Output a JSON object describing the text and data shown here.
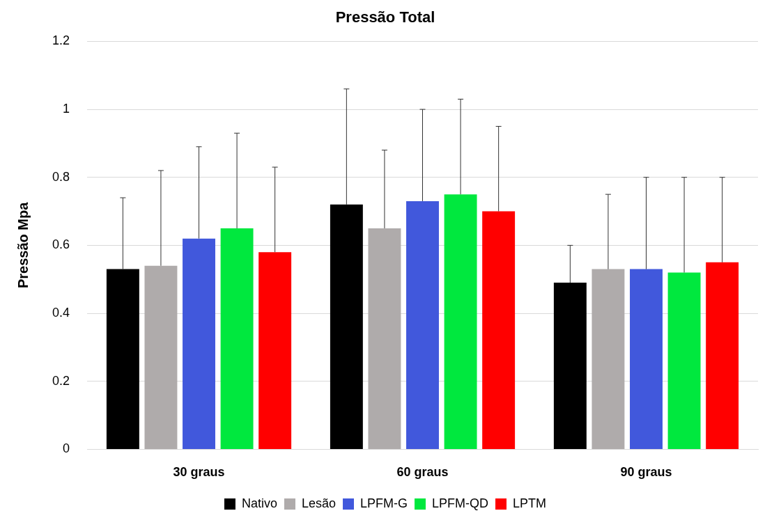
{
  "chart_data": {
    "type": "bar",
    "title": "Pressão Total",
    "ylabel": "Pressão Mpa",
    "categories": [
      "30 graus",
      "60 graus",
      "90 graus"
    ],
    "series": [
      {
        "name": "Nativo",
        "color": "#000000",
        "values": [
          0.53,
          0.72,
          0.49
        ],
        "errors": [
          [
            0.53,
            0.74
          ],
          [
            0.72,
            1.06
          ],
          [
            0.49,
            0.6
          ]
        ]
      },
      {
        "name": "Lesão",
        "color": "#afabab",
        "values": [
          0.54,
          0.65,
          0.53
        ],
        "errors": [
          [
            0.54,
            0.82
          ],
          [
            0.65,
            0.88
          ],
          [
            0.53,
            0.75
          ]
        ]
      },
      {
        "name": "LPFM-G",
        "color": "#4158dc",
        "values": [
          0.62,
          0.73,
          0.53
        ],
        "errors": [
          [
            0.62,
            0.89
          ],
          [
            0.73,
            1.0
          ],
          [
            0.53,
            0.8
          ]
        ]
      },
      {
        "name": "LPFM-QD",
        "color": "#00e83e",
        "values": [
          0.65,
          0.75,
          0.52
        ],
        "errors": [
          [
            0.65,
            0.93
          ],
          [
            0.75,
            1.03
          ],
          [
            0.52,
            0.8
          ]
        ]
      },
      {
        "name": "LPTM",
        "color": "#ff0000",
        "values": [
          0.58,
          0.7,
          0.55
        ],
        "errors": [
          [
            0.58,
            0.83
          ],
          [
            0.7,
            0.95
          ],
          [
            0.55,
            0.8
          ]
        ]
      }
    ],
    "ylim": [
      0,
      1.2
    ],
    "yticks": [
      0,
      0.2,
      0.4,
      0.6,
      0.8,
      1,
      1.2
    ],
    "grid": "y",
    "legend": "bottom"
  }
}
